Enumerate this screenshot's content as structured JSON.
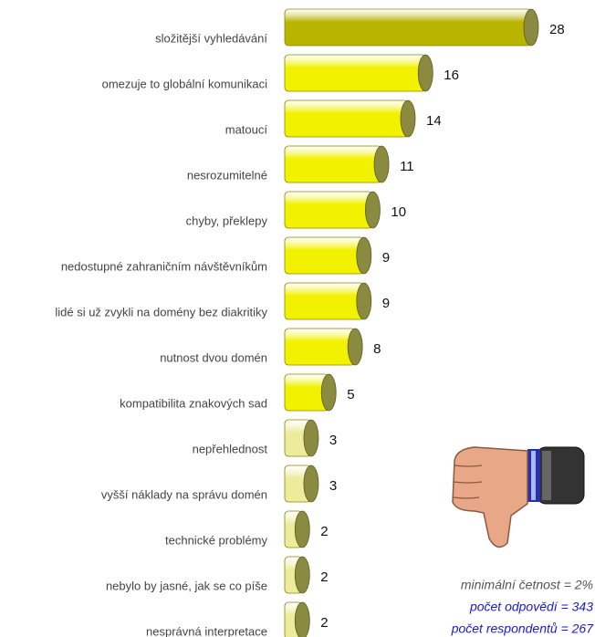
{
  "chart_data": {
    "type": "bar",
    "orientation": "horizontal",
    "categories": [
      "složitější vyhledávání",
      "omezuje to globální komunikaci",
      "matoucí",
      "nesrozumitelné",
      "chyby, překlepy",
      "nedostupné zahraničním návštěvníkům",
      "lidé si už zvykli na domény bez diakritiky",
      "nutnost dvou domén",
      "kompatibilita znakových sad",
      "nepřehlednost",
      "vyšší náklady na správu domén",
      "technické problémy",
      "nebylo by jasné, jak se co píše",
      "nesprávná interpretace"
    ],
    "values": [
      28,
      16,
      14,
      11,
      10,
      9,
      9,
      8,
      5,
      3,
      3,
      2,
      2,
      2
    ],
    "colors": [
      "#b8b400",
      "#f2f200",
      "#f2f200",
      "#f2f200",
      "#f2f200",
      "#f2f200",
      "#f2f200",
      "#f2f200",
      "#f2f200",
      "#ecec9c",
      "#ecec9c",
      "#ecec9c",
      "#ecec9c",
      "#ecec9c"
    ]
  },
  "notes": [
    "minimální četnost = 2%",
    "počet odpovědí = 343",
    "počet respondentů = 267"
  ]
}
